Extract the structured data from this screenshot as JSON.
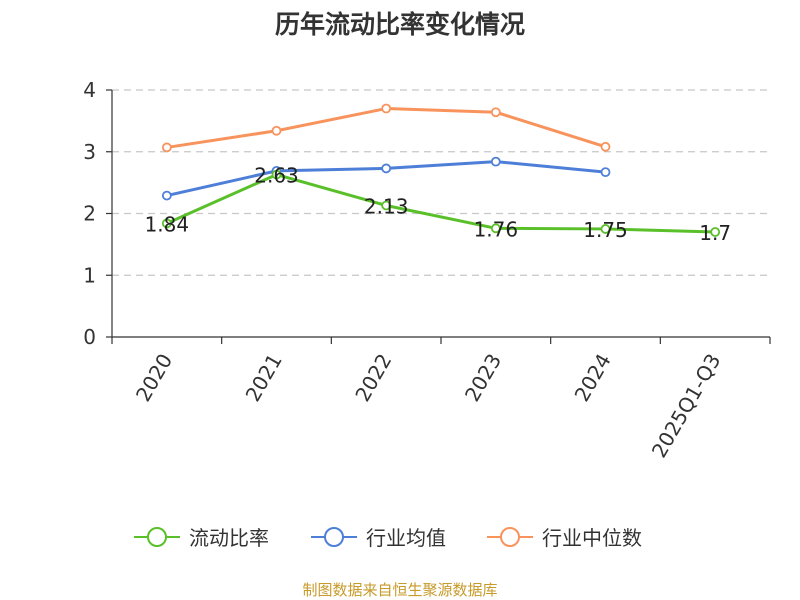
{
  "chart_data": {
    "type": "line",
    "title": "历年流动比率变化情况",
    "categories": [
      "2020",
      "2021",
      "2022",
      "2023",
      "2024",
      "2025Q1-Q3"
    ],
    "ylim": [
      0,
      4
    ],
    "yticks": [
      "0",
      "1",
      "2",
      "3",
      "4"
    ],
    "grid": "horizontal dashed",
    "legend_position": "bottom",
    "series": [
      {
        "name": "流动比率",
        "color": "#5ac02a",
        "values": [
          1.84,
          2.63,
          2.13,
          1.76,
          1.75,
          1.7
        ],
        "labels": [
          "1.84",
          "2.63",
          "2.13",
          "1.76",
          "1.75",
          "1.7"
        ]
      },
      {
        "name": "行业均值",
        "color": "#4e7fd8",
        "values": [
          2.29,
          2.69,
          2.73,
          2.84,
          2.67,
          null
        ]
      },
      {
        "name": "行业中位数",
        "color": "#f8935c",
        "values": [
          3.07,
          3.34,
          3.7,
          3.64,
          3.08,
          null
        ]
      }
    ],
    "source": "制图数据来自恒生聚源数据库"
  }
}
